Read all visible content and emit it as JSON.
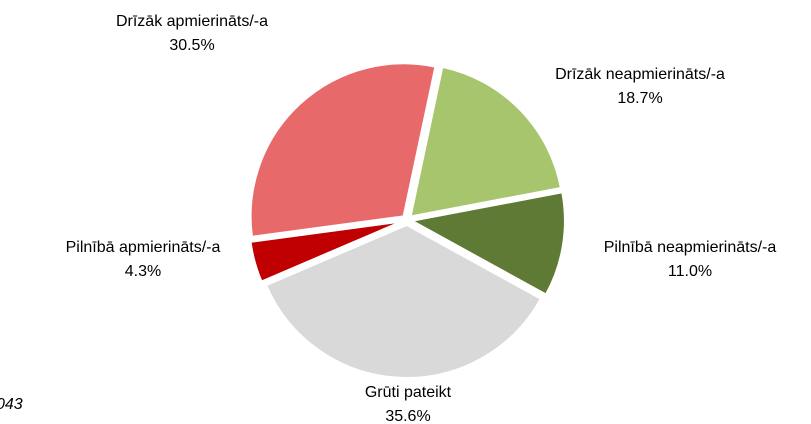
{
  "chart_data": {
    "type": "pie",
    "categories": [
      "Drīzāk neapmierināts/-a",
      "Pilnībā neapmierināts/-a",
      "Grūti pateikt",
      "Pilnībā apmierināts/-a",
      "Drīzāk apmierināts/-a"
    ],
    "values": [
      18.7,
      11.0,
      35.6,
      4.3,
      30.5
    ],
    "value_labels": [
      "18.7%",
      "11.0%",
      "35.6%",
      "4.3%",
      "30.5%"
    ],
    "colors": [
      "#a6c56c",
      "#5f7a35",
      "#d9d9d9",
      "#c00000",
      "#e8696a"
    ],
    "note": "043"
  }
}
